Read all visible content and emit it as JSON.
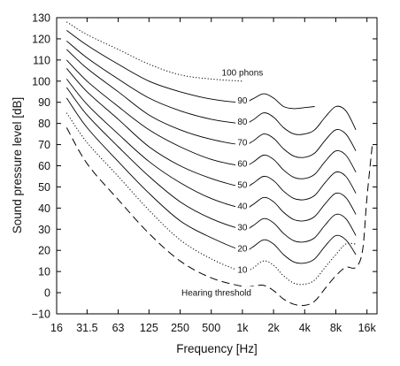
{
  "chart_data": {
    "type": "line",
    "title": "",
    "xlabel": "Frequency [Hz]",
    "ylabel": "Sound pressure level [dB]",
    "x_scale": "log",
    "xlim": [
      16,
      20000
    ],
    "ylim": [
      -10,
      130
    ],
    "grid": false,
    "x_ticks": [
      {
        "value": 16,
        "label": "16"
      },
      {
        "value": 31.5,
        "label": "31.5"
      },
      {
        "value": 63,
        "label": "63"
      },
      {
        "value": 125,
        "label": "125"
      },
      {
        "value": 250,
        "label": "250"
      },
      {
        "value": 500,
        "label": "500"
      },
      {
        "value": 1000,
        "label": "1k"
      },
      {
        "value": 2000,
        "label": "2k"
      },
      {
        "value": 4000,
        "label": "4k"
      },
      {
        "value": 8000,
        "label": "8k"
      },
      {
        "value": 16000,
        "label": "16k"
      }
    ],
    "y_ticks": [
      {
        "value": 130,
        "label": "130"
      },
      {
        "value": 120,
        "label": "120"
      },
      {
        "value": 110,
        "label": "110"
      },
      {
        "value": 100,
        "label": "100"
      },
      {
        "value": 90,
        "label": "90"
      },
      {
        "value": 80,
        "label": "80"
      },
      {
        "value": 70,
        "label": "70"
      },
      {
        "value": 60,
        "label": "60"
      },
      {
        "value": 50,
        "label": "50"
      },
      {
        "value": 40,
        "label": "40"
      },
      {
        "value": 30,
        "label": "30"
      },
      {
        "value": 20,
        "label": "20"
      },
      {
        "value": 10,
        "label": "10"
      },
      {
        "value": 0,
        "label": "0"
      },
      {
        "value": -10,
        "label": "−10"
      }
    ],
    "series": [
      {
        "name": "100 phons",
        "style": "dotted",
        "label_at": [
          1000,
          104
        ],
        "x": [
          20,
          31.5,
          63,
          125,
          250,
          500,
          1000
        ],
        "y": [
          128,
          122,
          115,
          108,
          103,
          101,
          100
        ]
      },
      {
        "name": "90",
        "style": "solid",
        "label_at": [
          1000,
          91
        ],
        "x": [
          20,
          31.5,
          63,
          125,
          250,
          500,
          1000,
          1250,
          1600,
          2000,
          2500,
          3150,
          4000,
          5000
        ],
        "y": [
          124,
          117,
          108,
          100,
          95,
          91.5,
          90,
          91.5,
          94,
          92,
          88,
          87,
          87.5,
          88
        ]
      },
      {
        "name": "80",
        "style": "solid",
        "label_at": [
          1000,
          81
        ],
        "x": [
          20,
          31.5,
          63,
          125,
          250,
          500,
          1000,
          1250,
          1600,
          2000,
          2500,
          3150,
          4000,
          5000,
          6300,
          8000,
          10000,
          12500
        ],
        "y": [
          119,
          111,
          101,
          92,
          86,
          82,
          80,
          81.5,
          85,
          83,
          78,
          75,
          75,
          77,
          83,
          88,
          86,
          77
        ]
      },
      {
        "name": "70",
        "style": "solid",
        "label_at": [
          1000,
          71
        ],
        "x": [
          20,
          31.5,
          63,
          125,
          250,
          500,
          1000,
          1250,
          1600,
          2000,
          2500,
          3150,
          4000,
          5000,
          6300,
          8000,
          10000,
          12500
        ],
        "y": [
          115,
          106,
          95,
          84,
          77,
          72.5,
          70,
          71.5,
          75,
          73,
          68,
          64.5,
          64,
          66,
          72,
          77,
          75,
          67
        ]
      },
      {
        "name": "60",
        "style": "solid",
        "label_at": [
          1000,
          61
        ],
        "x": [
          20,
          31.5,
          63,
          125,
          250,
          500,
          1000,
          1250,
          1600,
          2000,
          2500,
          3150,
          4000,
          5000,
          6300,
          8000,
          10000,
          12500
        ],
        "y": [
          110,
          100,
          88,
          77,
          69,
          63,
          60,
          61.5,
          65,
          63,
          58,
          54.5,
          54,
          56,
          62,
          67,
          65,
          57
        ]
      },
      {
        "name": "50",
        "style": "solid",
        "label_at": [
          1000,
          51
        ],
        "x": [
          20,
          31.5,
          63,
          125,
          250,
          500,
          1000,
          1250,
          1600,
          2000,
          2500,
          3150,
          4000,
          5000,
          6300,
          8000,
          10000,
          12500
        ],
        "y": [
          106,
          95,
          82,
          69,
          60,
          54,
          50,
          51.5,
          55,
          53,
          48,
          44.5,
          44,
          46,
          52,
          57,
          55,
          47
        ]
      },
      {
        "name": "40",
        "style": "solid",
        "label_at": [
          1000,
          41
        ],
        "x": [
          20,
          31.5,
          63,
          125,
          250,
          500,
          1000,
          1250,
          1600,
          2000,
          2500,
          3150,
          4000,
          5000,
          6300,
          8000,
          10000,
          12500
        ],
        "y": [
          101,
          89,
          75,
          62,
          52,
          44.5,
          40,
          41.5,
          45,
          43,
          38,
          34.5,
          34,
          36,
          42,
          47,
          45,
          37
        ]
      },
      {
        "name": "30",
        "style": "solid",
        "label_at": [
          1000,
          31
        ],
        "x": [
          20,
          31.5,
          63,
          125,
          250,
          500,
          1000,
          1250,
          1600,
          2000,
          2500,
          3150,
          4000,
          5000,
          6300,
          8000,
          10000,
          12500
        ],
        "y": [
          97,
          84,
          69,
          55,
          43,
          35,
          30,
          31.5,
          35,
          33,
          28,
          24.5,
          24,
          26,
          32,
          37,
          35,
          27
        ]
      },
      {
        "name": "20",
        "style": "solid",
        "label_at": [
          1000,
          21
        ],
        "x": [
          20,
          31.5,
          63,
          125,
          250,
          500,
          1000,
          1250,
          1600,
          2000,
          2500,
          3150,
          4000,
          5000,
          6300,
          8000,
          10000,
          12500
        ],
        "y": [
          92,
          78,
          62,
          47,
          34,
          26,
          20,
          21.5,
          25,
          23,
          18,
          14.5,
          14,
          16,
          22,
          27,
          25,
          18
        ]
      },
      {
        "name": "10",
        "style": "dotted",
        "label_at": [
          1000,
          11
        ],
        "x": [
          20,
          31.5,
          63,
          125,
          250,
          500,
          1000,
          1250,
          1600,
          2000,
          2500,
          3150,
          4000,
          5000,
          6300,
          8000,
          10000,
          12500
        ],
        "y": [
          85,
          71,
          55,
          39,
          25,
          16,
          10,
          11.5,
          15,
          13,
          8,
          4.5,
          4,
          6,
          12,
          18,
          23,
          23
        ]
      },
      {
        "name": "Hearing threshold",
        "style": "dashed",
        "label_at": [
          560,
          0
        ],
        "x": [
          20,
          31.5,
          63,
          125,
          250,
          500,
          1000,
          1250,
          1600,
          2000,
          2500,
          3150,
          4000,
          5000,
          6300,
          8000,
          10000,
          12500,
          14500,
          16000,
          18000
        ],
        "y": [
          78,
          61,
          44,
          28,
          15,
          7,
          3,
          3,
          3.5,
          1,
          -3,
          -5.5,
          -6,
          -4,
          2,
          8,
          12,
          12,
          20,
          45,
          70
        ]
      }
    ]
  }
}
